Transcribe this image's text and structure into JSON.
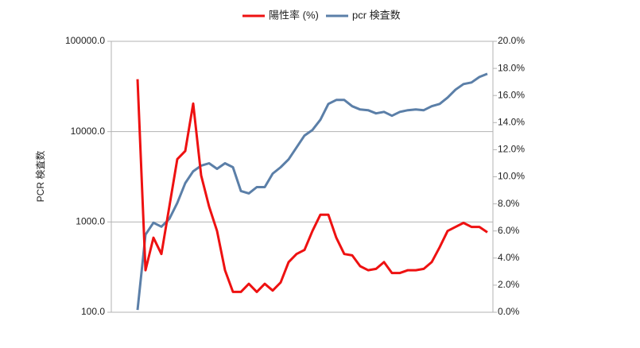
{
  "chart_data": {
    "type": "line",
    "ylabel": "PCR 検査数",
    "yscale": "log",
    "ylim": [
      100,
      100000
    ],
    "yticks": [
      {
        "value": 100,
        "label": "100.0"
      },
      {
        "value": 1000,
        "label": "1000.0"
      },
      {
        "value": 10000,
        "label": "10000.0"
      },
      {
        "value": 100000,
        "label": "100000.0"
      }
    ],
    "y2lim": [
      0,
      20
    ],
    "y2ticks": [
      {
        "value": 0,
        "label": "0.0%"
      },
      {
        "value": 2,
        "label": "2.0%"
      },
      {
        "value": 4,
        "label": "4.0%"
      },
      {
        "value": 6,
        "label": "6.0%"
      },
      {
        "value": 8,
        "label": "8.0%"
      },
      {
        "value": 10,
        "label": "10.0%"
      },
      {
        "value": 12,
        "label": "12.0%"
      },
      {
        "value": 14,
        "label": "14.0%"
      },
      {
        "value": 16,
        "label": "16.0%"
      },
      {
        "value": 18,
        "label": "18.0%"
      },
      {
        "value": 20,
        "label": "20.0%"
      }
    ],
    "grid": true,
    "legend": "top",
    "series": [
      {
        "name": "陽性率 (%)",
        "color": "#ee1111",
        "axis": "y2",
        "values": [
          17.2,
          3.1,
          5.5,
          4.3,
          7.8,
          11.3,
          11.9,
          15.4,
          10.1,
          7.8,
          6.0,
          3.1,
          1.5,
          1.5,
          2.1,
          1.5,
          2.1,
          1.6,
          2.2,
          3.7,
          4.3,
          4.6,
          6.0,
          7.2,
          7.2,
          5.5,
          4.3,
          4.2,
          3.4,
          3.1,
          3.2,
          3.7,
          2.9,
          2.9,
          3.1,
          3.1,
          3.2,
          3.7,
          4.8,
          6.0,
          6.3,
          6.6,
          6.3,
          6.3,
          5.9
        ]
      },
      {
        "name": "pcr 検査数",
        "color": "#5b7fa8",
        "axis": "y",
        "values": [
          106,
          724,
          980,
          886,
          1084,
          1624,
          2690,
          3640,
          4196,
          4460,
          3870,
          4460,
          4030,
          2200,
          2070,
          2430,
          2430,
          3430,
          4030,
          4930,
          6680,
          9040,
          10420,
          13550,
          20280,
          22420,
          22420,
          19100,
          17600,
          17260,
          15920,
          16560,
          14970,
          16560,
          17260,
          17600,
          17260,
          19100,
          20280,
          23830,
          29170,
          33600,
          35000,
          40300,
          43700
        ]
      }
    ]
  }
}
